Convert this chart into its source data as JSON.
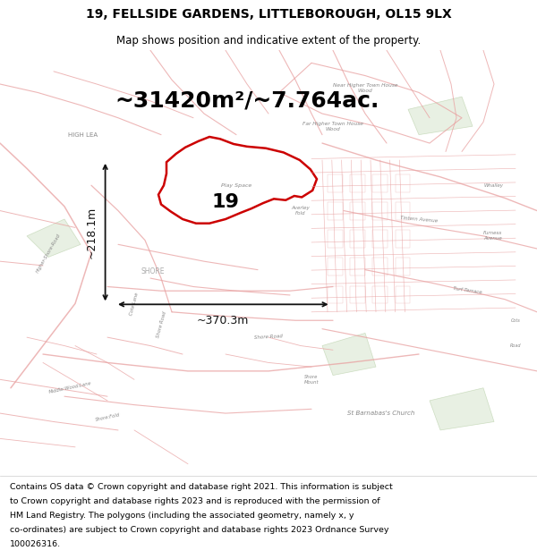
{
  "title": "19, FELLSIDE GARDENS, LITTLEBOROUGH, OL15 9LX",
  "subtitle": "Map shows position and indicative extent of the property.",
  "area_label": "~31420m²/~7.764ac.",
  "plot_number": "19",
  "dim_width": "~370.3m",
  "dim_height": "~218.1m",
  "footer_lines": [
    "Contains OS data © Crown copyright and database right 2021. This information is subject",
    "to Crown copyright and database rights 2023 and is reproduced with the permission of",
    "HM Land Registry. The polygons (including the associated geometry, namely x, y",
    "co-ordinates) are subject to Crown copyright and database rights 2023 Ordnance Survey",
    "100026316."
  ],
  "map_bg": "#faf3f3",
  "title_fontsize": 10,
  "subtitle_fontsize": 8.5,
  "area_fontsize": 18,
  "plot_number_fontsize": 16,
  "dim_fontsize": 9,
  "footer_fontsize": 6.8,
  "label_color": "#888888",
  "road_color": "#e8a0a0",
  "property_color": "#cc0000",
  "dim_color": "#111111"
}
